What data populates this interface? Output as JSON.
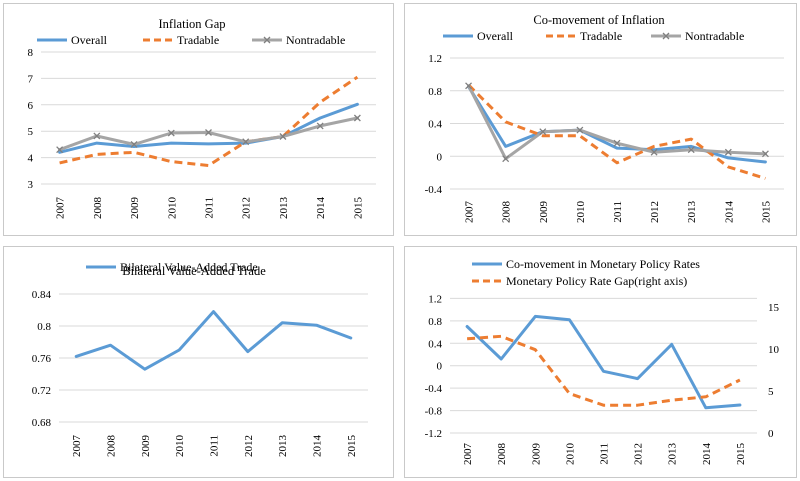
{
  "chart_data": [
    {
      "type": "line",
      "title": "Inflation Gap",
      "categories": [
        "2007",
        "2008",
        "2009",
        "2010",
        "2011",
        "2012",
        "2013",
        "2014",
        "2015"
      ],
      "ylim": [
        3,
        8
      ],
      "yticks": [
        3,
        4,
        5,
        6,
        7,
        8
      ],
      "ytick_labels": [
        "3",
        "4",
        "5",
        "6",
        "7",
        "8"
      ],
      "legend_position": "top",
      "series": [
        {
          "name": "Overall",
          "style": "solid",
          "color": "#5B9BD5",
          "values": [
            4.2,
            4.55,
            4.42,
            4.55,
            4.52,
            4.55,
            4.8,
            5.5,
            6.02
          ]
        },
        {
          "name": "Tradable",
          "style": "dashed",
          "color": "#ED7D31",
          "values": [
            3.8,
            4.12,
            4.2,
            3.85,
            3.7,
            4.6,
            4.8,
            6.1,
            7.05
          ]
        },
        {
          "name": "Nontradable",
          "style": "solid-x",
          "color": "#A5A5A5",
          "values": [
            4.3,
            4.82,
            4.5,
            4.93,
            4.95,
            4.6,
            4.8,
            5.2,
            5.5
          ]
        }
      ]
    },
    {
      "type": "line",
      "title": "Co-movement of Inflation",
      "categories": [
        "2007",
        "2008",
        "2009",
        "2010",
        "2011",
        "2012",
        "2013",
        "2014",
        "2015"
      ],
      "ylim": [
        -0.4,
        1.2
      ],
      "yticks": [
        -0.4,
        0,
        0.4,
        0.8,
        1.2
      ],
      "ytick_labels": [
        "-0.4",
        "0",
        "0.4",
        "0.8",
        "1.2"
      ],
      "legend_position": "top",
      "series": [
        {
          "name": "Overall",
          "style": "solid",
          "color": "#5B9BD5",
          "values": [
            0.85,
            0.12,
            0.3,
            0.32,
            0.1,
            0.08,
            0.12,
            -0.02,
            -0.07
          ]
        },
        {
          "name": "Tradable",
          "style": "dashed",
          "color": "#ED7D31",
          "values": [
            0.87,
            0.42,
            0.25,
            0.25,
            -0.08,
            0.12,
            0.21,
            -0.13,
            -0.27
          ]
        },
        {
          "name": "Nontradable",
          "style": "solid-x",
          "color": "#A5A5A5",
          "values": [
            0.86,
            -0.03,
            0.3,
            0.32,
            0.16,
            0.05,
            0.08,
            0.05,
            0.03
          ]
        }
      ]
    },
    {
      "type": "line",
      "title": "Bilateral Value-Added Trade",
      "categories": [
        "2007",
        "2008",
        "2009",
        "2010",
        "2011",
        "2012",
        "2013",
        "2014",
        "2015"
      ],
      "ylim": [
        0.68,
        0.84
      ],
      "yticks": [
        0.68,
        0.72,
        0.76,
        0.8,
        0.84
      ],
      "ytick_labels": [
        "0.68",
        "0.72",
        "0.76",
        "0.8",
        "0.84"
      ],
      "legend_position": "top",
      "series": [
        {
          "name": "Bilateral Value-Added Trade",
          "style": "solid",
          "color": "#5B9BD5",
          "values": [
            0.762,
            0.776,
            0.746,
            0.77,
            0.818,
            0.768,
            0.804,
            0.801,
            0.785
          ]
        }
      ]
    },
    {
      "type": "line",
      "title": "",
      "categories": [
        "2007",
        "2008",
        "2009",
        "2010",
        "2011",
        "2012",
        "2013",
        "2014",
        "2015"
      ],
      "ylim": [
        -1.2,
        1.6
      ],
      "yticks": [
        -1.2,
        -0.8,
        -0.4,
        0,
        0.4,
        0.8,
        1.2
      ],
      "ytick_labels": [
        "-1.2",
        "-0.8",
        "-0.4",
        "0",
        "0.4",
        "0.8",
        "1.2"
      ],
      "y2lim": [
        0,
        18.67
      ],
      "y2ticks": [
        0,
        5,
        10,
        15
      ],
      "y2tick_labels": [
        "0",
        "5",
        "10",
        "15"
      ],
      "legend_position": "top",
      "series": [
        {
          "name": "Co-movement in Monetary Policy Rates",
          "style": "solid",
          "color": "#5B9BD5",
          "axis": "left",
          "values": [
            0.7,
            0.12,
            0.88,
            0.82,
            -0.1,
            -0.23,
            0.38,
            -0.75,
            -0.7
          ]
        },
        {
          "name": "Monetary Policy Rate Gap(right axis)",
          "style": "dashed",
          "color": "#ED7D31",
          "axis": "right",
          "values": [
            11.2,
            11.5,
            9.9,
            4.7,
            3.3,
            3.3,
            3.9,
            4.3,
            6.3
          ]
        }
      ]
    }
  ]
}
